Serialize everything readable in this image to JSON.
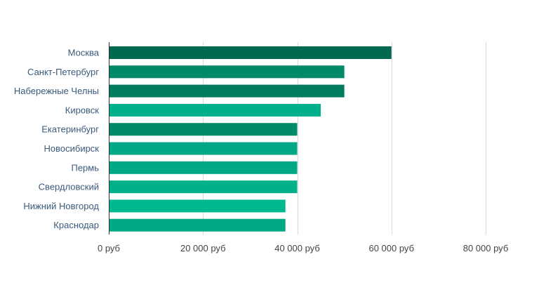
{
  "chart_data": {
    "type": "bar",
    "orientation": "horizontal",
    "title": "",
    "xlabel": "",
    "ylabel": "",
    "categories": [
      "Москва",
      "Санкт-Петербург",
      "Набережные Челны",
      "Кировск",
      "Екатеринбург",
      "Новосибирск",
      "Пермь",
      "Свердловский",
      "Нижний Новгород",
      "Краснодар"
    ],
    "values": [
      60000,
      50000,
      50000,
      45000,
      40000,
      40000,
      40000,
      40000,
      37500,
      37500
    ],
    "bar_colors": [
      "#00694f",
      "#008a6a",
      "#007c5f",
      "#00b08b",
      "#008a6a",
      "#00a886",
      "#00a886",
      "#00b08b",
      "#00b88f",
      "#00a886"
    ],
    "xlim": [
      0,
      80000
    ],
    "x_ticks": [
      0,
      20000,
      40000,
      60000,
      80000
    ],
    "x_tick_labels": [
      "0 руб",
      "20 000 руб",
      "40 000 руб",
      "60 000 руб",
      "80 000 руб"
    ],
    "grid": true,
    "gridline_color": "#d9d9d9",
    "axis_color": "#333333",
    "category_label_color": "#3a5a7c",
    "tick_label_color": "#444444"
  }
}
